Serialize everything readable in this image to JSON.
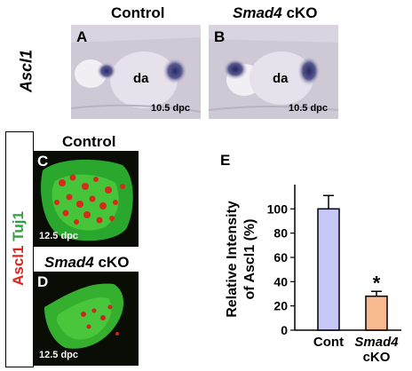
{
  "row_label": "Ascl1",
  "top_panels": [
    {
      "title": "Control",
      "label": "A",
      "region": "da",
      "stage": "10.5 dpc"
    },
    {
      "title_italic": "Smad4",
      "title_rest": " cKO",
      "label": "B",
      "region": "da",
      "stage": "10.5 dpc"
    }
  ],
  "stain_label": {
    "red": "Ascl1",
    "green": "Tuj1",
    "red_color": "#e0261c",
    "green_color": "#2aa33a"
  },
  "bottom_panels": [
    {
      "title": "Control",
      "label": "C",
      "stage": "12.5 dpc"
    },
    {
      "title_italic": "Smad4",
      "title_rest": " cKO",
      "label": "D",
      "stage": "12.5 dpc"
    }
  ],
  "chart_panel_label": "E",
  "chart_data": {
    "type": "bar",
    "categories": [
      "Cont",
      "Smad4 cKO"
    ],
    "category_lines": [
      [
        "Cont"
      ],
      [
        "Smad4",
        "cKO"
      ]
    ],
    "values": [
      100,
      28
    ],
    "errors": [
      11,
      4
    ],
    "colors": [
      "#c8c8f8",
      "#f8b890"
    ],
    "ylabel_lines": [
      "Relative Intensity",
      "of Ascl1 (%)"
    ],
    "yticks": [
      0,
      20,
      40,
      60,
      80,
      100
    ],
    "ylim": [
      0,
      120
    ],
    "significance": [
      "",
      "*"
    ]
  }
}
